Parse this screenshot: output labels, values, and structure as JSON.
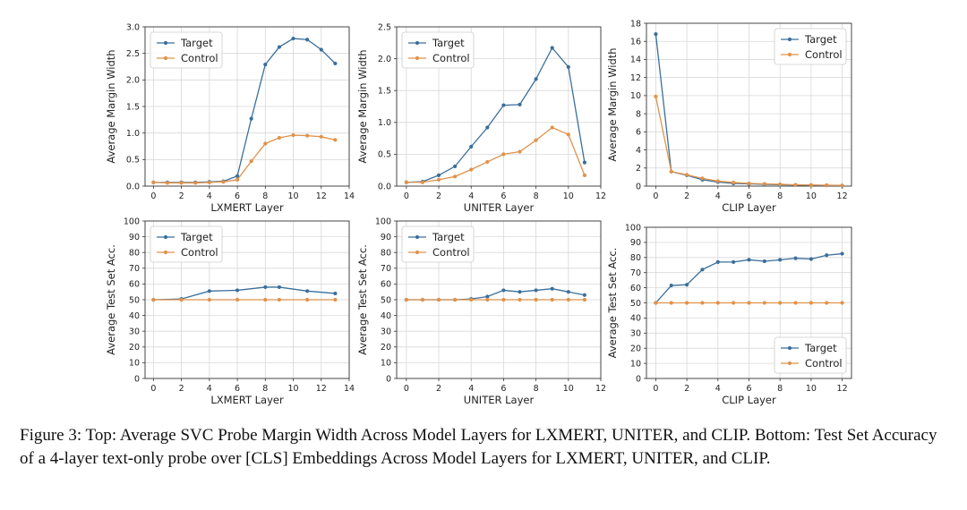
{
  "caption": "Figure 3: Top: Average SVC Probe Margin Width Across Model Layers for LXMERT, UNITER, and CLIP. Bottom: Test Set Accuracy of a 4-layer text-only probe over [CLS] Embeddings Across Model Layers for LXMERT, UNITER, and CLIP.",
  "colors": {
    "target": "#3a6f9b",
    "control": "#e0924a"
  },
  "chart_data": [
    {
      "id": "lxmert-margin",
      "type": "line",
      "xlabel": "LXMERT Layer",
      "ylabel": "Average Margin Width",
      "xlim": [
        -0.6,
        14
      ],
      "ylim": [
        0,
        3.0
      ],
      "xticks": [
        0,
        2,
        4,
        6,
        8,
        10,
        12,
        14
      ],
      "yticks": [
        0.0,
        0.5,
        1.0,
        1.5,
        2.0,
        2.5,
        3.0
      ],
      "ytick_decimals": 1,
      "grid": true,
      "legend": "top-left",
      "x": [
        0,
        1,
        2,
        3,
        4,
        5,
        6,
        7,
        8,
        9,
        10,
        11,
        12,
        13
      ],
      "series": [
        {
          "name": "Target",
          "values": [
            0.07,
            0.07,
            0.07,
            0.07,
            0.08,
            0.09,
            0.19,
            1.27,
            2.29,
            2.62,
            2.78,
            2.76,
            2.57,
            2.31
          ]
        },
        {
          "name": "Control",
          "values": [
            0.07,
            0.06,
            0.06,
            0.06,
            0.07,
            0.08,
            0.12,
            0.47,
            0.8,
            0.91,
            0.96,
            0.95,
            0.93,
            0.87
          ]
        }
      ]
    },
    {
      "id": "uniter-margin",
      "type": "line",
      "xlabel": "UNITER Layer",
      "ylabel": "Average Margin Width",
      "xlim": [
        -0.6,
        12
      ],
      "ylim": [
        0,
        2.5
      ],
      "xticks": [
        0,
        2,
        4,
        6,
        8,
        10,
        12
      ],
      "yticks": [
        0.0,
        0.5,
        1.0,
        1.5,
        2.0,
        2.5
      ],
      "ytick_decimals": 1,
      "grid": true,
      "legend": "top-left",
      "x": [
        0,
        1,
        2,
        3,
        4,
        5,
        6,
        7,
        8,
        9,
        10,
        11
      ],
      "series": [
        {
          "name": "Target",
          "values": [
            0.06,
            0.07,
            0.17,
            0.31,
            0.62,
            0.92,
            1.27,
            1.28,
            1.68,
            2.17,
            1.87,
            0.37
          ]
        },
        {
          "name": "Control",
          "values": [
            0.06,
            0.06,
            0.1,
            0.15,
            0.26,
            0.38,
            0.5,
            0.54,
            0.72,
            0.92,
            0.81,
            0.17
          ]
        }
      ]
    },
    {
      "id": "clip-margin",
      "type": "line",
      "xlabel": "CLIP Layer",
      "ylabel": "Average Margin Width",
      "xlim": [
        -0.6,
        12.6
      ],
      "ylim": [
        0,
        18
      ],
      "xticks": [
        0,
        2,
        4,
        6,
        8,
        10,
        12
      ],
      "yticks": [
        0,
        2,
        4,
        6,
        8,
        10,
        12,
        14,
        16,
        18
      ],
      "ytick_decimals": 0,
      "grid": true,
      "legend": "top-right",
      "x": [
        0,
        1,
        2,
        3,
        4,
        5,
        6,
        7,
        8,
        9,
        10,
        11,
        12
      ],
      "series": [
        {
          "name": "Target",
          "values": [
            16.8,
            1.6,
            1.2,
            0.7,
            0.45,
            0.3,
            0.25,
            0.2,
            0.15,
            0.12,
            0.1,
            0.08,
            0.05
          ]
        },
        {
          "name": "Control",
          "values": [
            9.9,
            1.6,
            1.25,
            0.85,
            0.55,
            0.4,
            0.3,
            0.25,
            0.2,
            0.15,
            0.12,
            0.1,
            0.08
          ]
        }
      ]
    },
    {
      "id": "lxmert-acc",
      "type": "line",
      "xlabel": "LXMERT Layer",
      "ylabel": "Average Test Set Acc.",
      "xlim": [
        -0.6,
        14
      ],
      "ylim": [
        0,
        100
      ],
      "xticks": [
        0,
        2,
        4,
        6,
        8,
        10,
        12,
        14
      ],
      "yticks": [
        0,
        10,
        20,
        30,
        40,
        50,
        60,
        70,
        80,
        90,
        100
      ],
      "ytick_decimals": 0,
      "grid": true,
      "legend": "top-left",
      "x": [
        0,
        2,
        4,
        6,
        8,
        9,
        11,
        13
      ],
      "series": [
        {
          "name": "Target",
          "values": [
            50,
            50.5,
            55.5,
            56,
            58,
            58,
            55.5,
            54
          ]
        },
        {
          "name": "Control",
          "values": [
            50,
            50,
            50,
            50,
            50,
            50,
            50,
            50
          ]
        }
      ]
    },
    {
      "id": "uniter-acc",
      "type": "line",
      "xlabel": "UNITER Layer",
      "ylabel": "Average Test Set Acc.",
      "xlim": [
        -0.6,
        12
      ],
      "ylim": [
        0,
        100
      ],
      "xticks": [
        0,
        2,
        4,
        6,
        8,
        10,
        12
      ],
      "yticks": [
        0,
        10,
        20,
        30,
        40,
        50,
        60,
        70,
        80,
        90,
        100
      ],
      "ytick_decimals": 0,
      "grid": true,
      "legend": "top-left",
      "x": [
        0,
        1,
        2,
        3,
        4,
        5,
        6,
        7,
        8,
        9,
        10,
        11
      ],
      "series": [
        {
          "name": "Target",
          "values": [
            50,
            50,
            50,
            50,
            50.5,
            52,
            56,
            55,
            56,
            57,
            55,
            53
          ]
        },
        {
          "name": "Control",
          "values": [
            50,
            50,
            50,
            50,
            50,
            50,
            50,
            50,
            50,
            50,
            50,
            50
          ]
        }
      ]
    },
    {
      "id": "clip-acc",
      "type": "line",
      "xlabel": "CLIP Layer",
      "ylabel": "Average Test Set Acc.",
      "xlim": [
        -0.6,
        12.6
      ],
      "ylim": [
        0,
        100
      ],
      "xticks": [
        0,
        2,
        4,
        6,
        8,
        10,
        12
      ],
      "yticks": [
        0,
        10,
        20,
        30,
        40,
        50,
        60,
        70,
        80,
        90,
        100
      ],
      "ytick_decimals": 0,
      "grid": true,
      "legend": "bottom-right",
      "x": [
        0,
        1,
        2,
        3,
        4,
        5,
        6,
        7,
        8,
        9,
        10,
        11,
        12
      ],
      "series": [
        {
          "name": "Target",
          "values": [
            50,
            61.5,
            62,
            72,
            77,
            77,
            78.5,
            77.5,
            78.5,
            79.5,
            79,
            81.5,
            82.5
          ]
        },
        {
          "name": "Control",
          "values": [
            50,
            50,
            50,
            50,
            50,
            50,
            50,
            50,
            50,
            50,
            50,
            50,
            50
          ]
        }
      ]
    }
  ]
}
